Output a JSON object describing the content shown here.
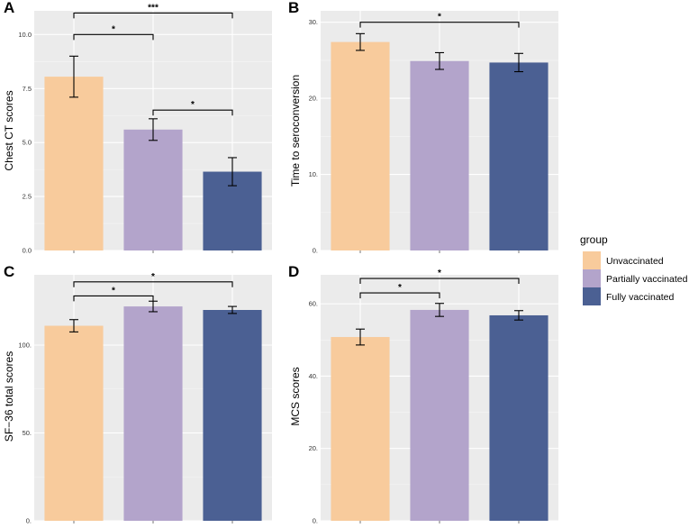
{
  "legend": {
    "title": "group",
    "items": [
      "Unvaccinated",
      "Partially vaccinated",
      "Fully vaccinated"
    ],
    "colors": [
      "#f8cb9c",
      "#b3a4cb",
      "#4b6093"
    ]
  },
  "chart_data": [
    {
      "type": "bar",
      "panel": "A",
      "ylabel": "Chest CT scores",
      "ylim": [
        0,
        11.1
      ],
      "ticks": [
        0,
        2.5,
        5,
        7.5,
        10
      ],
      "tick_labels": [
        "0.0",
        "2.5",
        "5.0",
        "7.5",
        "10.0"
      ],
      "categories": [
        "Unvaccinated",
        "Partially vaccinated",
        "Fully vaccinated"
      ],
      "values": [
        8.05,
        5.6,
        3.65
      ],
      "errors": [
        0.95,
        0.5,
        0.65
      ],
      "significance": [
        {
          "from": 0,
          "to": 1,
          "label": "*",
          "y": 10.0
        },
        {
          "from": 0,
          "to": 2,
          "label": "***",
          "y": 11.0
        },
        {
          "from": 1,
          "to": 2,
          "label": "*",
          "y": 6.5
        }
      ]
    },
    {
      "type": "bar",
      "panel": "B",
      "ylabel": "Time to seroconversion",
      "ylim": [
        0,
        31.5
      ],
      "ticks": [
        0,
        10,
        20,
        30
      ],
      "tick_labels": [
        "0.",
        "10.",
        "20.",
        "30."
      ],
      "categories": [
        "Unvaccinated",
        "Partially vaccinated",
        "Fully vaccinated"
      ],
      "values": [
        27.4,
        24.9,
        24.7
      ],
      "errors": [
        1.1,
        1.1,
        1.2
      ],
      "significance": [
        {
          "from": 0,
          "to": 2,
          "label": "*",
          "y": 30.0
        }
      ]
    },
    {
      "type": "bar",
      "panel": "C",
      "ylabel": "SF−36 total scores",
      "ylim": [
        0,
        140
      ],
      "ticks": [
        0,
        50,
        100
      ],
      "tick_labels": [
        "0.",
        "50.",
        "100."
      ],
      "categories": [
        "Unvaccinated",
        "Partially vaccinated",
        "Fully vaccinated"
      ],
      "values": [
        111,
        122,
        120
      ],
      "errors": [
        3.5,
        3,
        2
      ],
      "significance": [
        {
          "from": 0,
          "to": 1,
          "label": "*",
          "y": 128
        },
        {
          "from": 0,
          "to": 2,
          "label": "*",
          "y": 136
        }
      ]
    },
    {
      "type": "bar",
      "panel": "D",
      "ylabel": "MCS scores",
      "ylim": [
        0,
        68
      ],
      "ticks": [
        0,
        20,
        40,
        60
      ],
      "tick_labels": [
        "0.",
        "20.",
        "40.",
        "60."
      ],
      "categories": [
        "Unvaccinated",
        "Partially vaccinated",
        "Fully vaccinated"
      ],
      "values": [
        50.8,
        58.3,
        56.8
      ],
      "errors": [
        2.2,
        1.8,
        1.3
      ],
      "significance": [
        {
          "from": 0,
          "to": 1,
          "label": "*",
          "y": 63
        },
        {
          "from": 0,
          "to": 2,
          "label": "*",
          "y": 67
        }
      ]
    }
  ]
}
